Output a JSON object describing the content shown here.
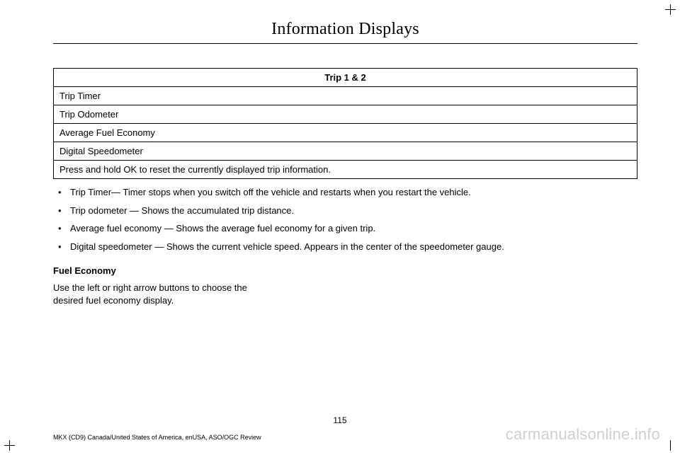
{
  "header": {
    "title": "Information Displays"
  },
  "table": {
    "header": "Trip 1 & 2",
    "rows": [
      "Trip Timer",
      "Trip Odometer",
      "Average Fuel Economy",
      "Digital Speedometer",
      "Press and hold OK to reset the currently displayed trip information."
    ]
  },
  "notes": [
    "Trip Timer— Timer stops when you switch off the vehicle and restarts when you restart the vehicle.",
    "Trip odometer — Shows the accumulated trip distance.",
    "Average fuel economy — Shows the average fuel economy for a given trip.",
    "Digital speedometer — Shows the current vehicle speed. Appears in the center of the speedometer gauge."
  ],
  "section": {
    "title": "Fuel Economy",
    "body": "Use the left or right arrow buttons to choose the desired fuel economy display."
  },
  "page_number": "115",
  "footer_left": "MKX (CD9) Canada/United States of America, enUSA, ASO/OGC Review",
  "watermark": "carmanualsonline.info"
}
